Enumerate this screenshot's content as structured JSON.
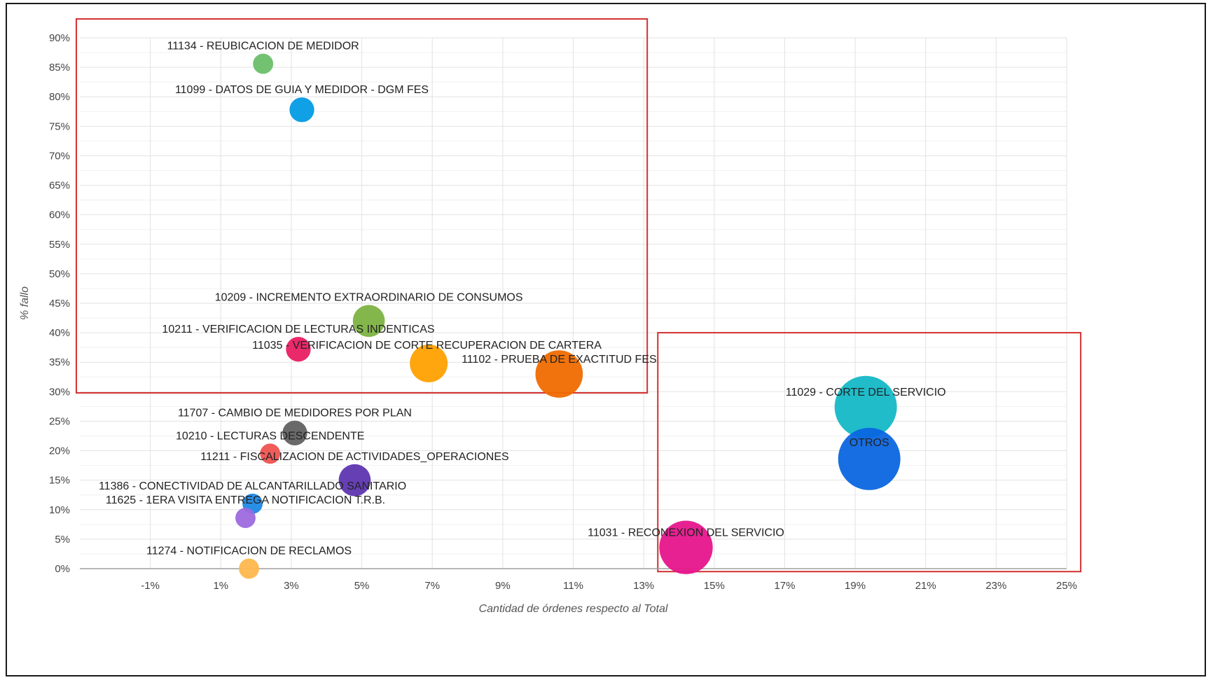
{
  "chart_data": {
    "type": "scatter",
    "xlabel": "Cantidad de órdenes respecto al Total",
    "ylabel": "% fallo",
    "xlim": [
      -3,
      25
    ],
    "ylim": [
      0,
      90
    ],
    "x_ticks": [
      {
        "value": -1,
        "label": "-1%"
      },
      {
        "value": 1,
        "label": "1%"
      },
      {
        "value": 3,
        "label": "3%"
      },
      {
        "value": 5,
        "label": "5%"
      },
      {
        "value": 7,
        "label": "7%"
      },
      {
        "value": 9,
        "label": "9%"
      },
      {
        "value": 11,
        "label": "11%"
      },
      {
        "value": 13,
        "label": "13%"
      },
      {
        "value": 15,
        "label": "15%"
      },
      {
        "value": 17,
        "label": "17%"
      },
      {
        "value": 19,
        "label": "19%"
      },
      {
        "value": 21,
        "label": "21%"
      },
      {
        "value": 23,
        "label": "23%"
      },
      {
        "value": 25,
        "label": "25%"
      }
    ],
    "y_ticks": [
      {
        "value": 0,
        "label": "0%"
      },
      {
        "value": 5,
        "label": "5%"
      },
      {
        "value": 10,
        "label": "10%"
      },
      {
        "value": 15,
        "label": "15%"
      },
      {
        "value": 20,
        "label": "20%"
      },
      {
        "value": 25,
        "label": "25%"
      },
      {
        "value": 30,
        "label": "30%"
      },
      {
        "value": 35,
        "label": "35%"
      },
      {
        "value": 40,
        "label": "40%"
      },
      {
        "value": 45,
        "label": "45%"
      },
      {
        "value": 50,
        "label": "50%"
      },
      {
        "value": 55,
        "label": "55%"
      },
      {
        "value": 60,
        "label": "60%"
      },
      {
        "value": 65,
        "label": "65%"
      },
      {
        "value": 70,
        "label": "70%"
      },
      {
        "value": 75,
        "label": "75%"
      },
      {
        "value": 80,
        "label": "80%"
      },
      {
        "value": 85,
        "label": "85%"
      },
      {
        "value": 90,
        "label": "90%"
      }
    ],
    "grid": true,
    "legend": "none",
    "points": [
      {
        "label": "11134 - REUBICACION DE MEDIDOR",
        "x": 2.2,
        "y": 85.6,
        "size": 2,
        "color": "#6abf69",
        "label_side": "center"
      },
      {
        "label": "11099 - DATOS DE GUIA Y MEDIDOR - DGM FES",
        "x": 3.3,
        "y": 77.8,
        "size": 3,
        "color": "#039be5",
        "label_side": "center"
      },
      {
        "label": "10209 - INCREMENTO EXTRAORDINARIO DE CONSUMOS",
        "x": 5.2,
        "y": 42.0,
        "size": 5,
        "color": "#7cb342",
        "label_side": "center"
      },
      {
        "label": "10211 - VERIFICACION DE LECTURAS INDENTICAS",
        "x": 3.2,
        "y": 37.2,
        "size": 3,
        "color": "#e91e63",
        "label_side": "center"
      },
      {
        "label": "11035 - VERIFICACION DE CORTE RECUPERACION DE CARTERA",
        "x": 6.9,
        "y": 34.8,
        "size": 7,
        "color": "#ffa000",
        "label_side": "left"
      },
      {
        "label": "11102 - PRUEBA DE EXACTITUD FES",
        "x": 10.6,
        "y": 33.0,
        "size": 11,
        "color": "#ef6c00",
        "label_side": "center"
      },
      {
        "label": "11707 - CAMBIO DE MEDIDORES POR PLAN",
        "x": 3.1,
        "y": 23.0,
        "size": 3,
        "color": "#616161",
        "label_side": "center"
      },
      {
        "label": "10210 - LECTURAS DESCENDENTE",
        "x": 2.4,
        "y": 19.5,
        "size": 2,
        "color": "#ef5350",
        "label_side": "center"
      },
      {
        "label": "11211 - FISCALIZACION DE ACTIVIDADES_OPERACIONES",
        "x": 4.8,
        "y": 15.0,
        "size": 5,
        "color": "#5e35b1",
        "label_side": "center"
      },
      {
        "label": "11386 - CONECTIVIDAD DE ALCANTARILLADO SANITARIO",
        "x": 1.9,
        "y": 11.0,
        "size": 2,
        "color": "#1e88e5",
        "label_side": "center"
      },
      {
        "label": "11625 - 1ERA VISITA ENTREGA NOTIFICACION T.R.B.",
        "x": 1.7,
        "y": 8.6,
        "size": 2,
        "color": "#9c6ade",
        "label_side": "center"
      },
      {
        "label": "11274 - NOTIFICACION DE RECLAMOS",
        "x": 1.8,
        "y": 0.0,
        "size": 2,
        "color": "#ffb74d",
        "label_side": "center"
      },
      {
        "label": "11031 - RECONEXION DEL SERVICIO",
        "x": 14.2,
        "y": 3.6,
        "size": 14,
        "color": "#e6158c",
        "label_side": "center"
      },
      {
        "label": "11029 - CORTE DEL SERVICIO",
        "x": 19.3,
        "y": 27.4,
        "size": 19,
        "color": "#14b8c6",
        "label_side": "center"
      },
      {
        "label": "OTROS",
        "x": 19.4,
        "y": 18.6,
        "size": 19,
        "color": "#0a66e0",
        "label_side": "center"
      }
    ],
    "highlight_boxes": [
      {
        "name": "top-left-group",
        "x_range": [
          -3.1,
          13.1
        ],
        "y_range": [
          29.8,
          93.2
        ],
        "color": "#d32f2f"
      },
      {
        "name": "bottom-right-group",
        "x_range": [
          13.4,
          25.4
        ],
        "y_range": [
          -0.5,
          40.0
        ],
        "color": "#d32f2f"
      }
    ]
  }
}
